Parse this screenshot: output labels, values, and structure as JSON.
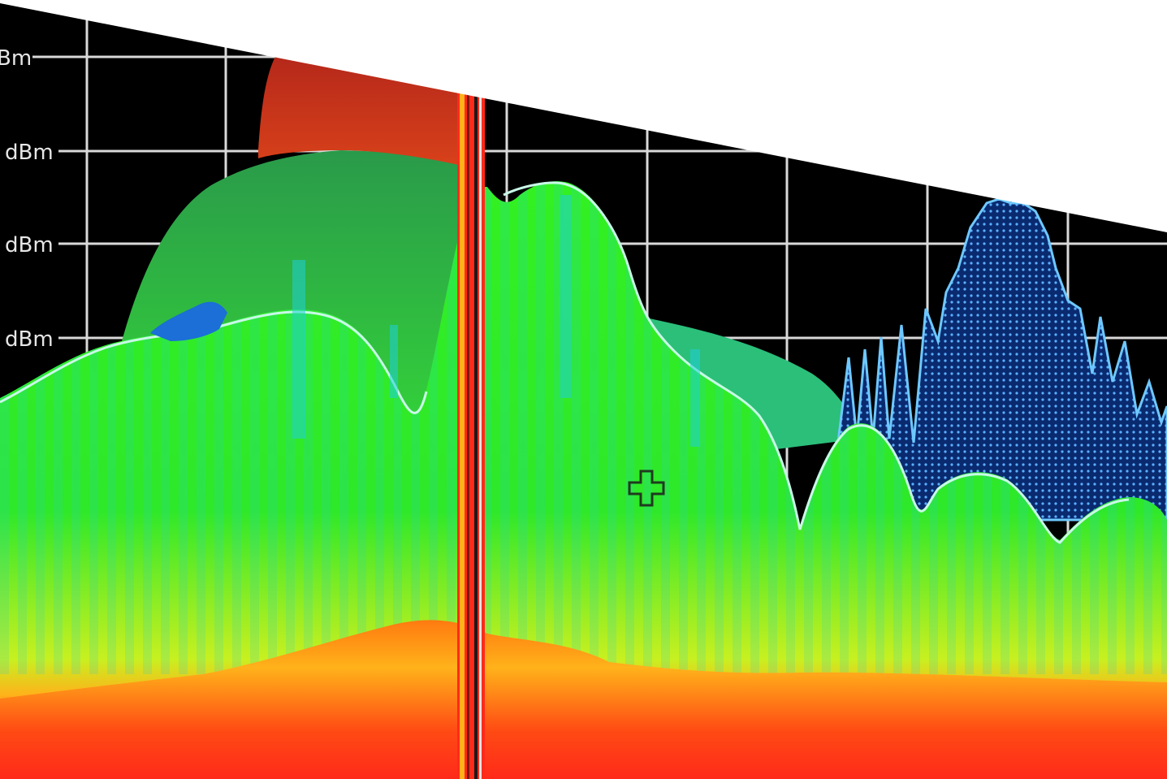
{
  "display": {
    "colors": {
      "background": "#000000",
      "grid": "#d9d9d9",
      "high_density": "#ff2a1a",
      "mid_density": "#33f022",
      "low_density": "#1fd0d8",
      "sparse": "#1b6fd6",
      "overlay_corner": "#ffffff"
    },
    "y_axis_labels": [
      "Bm",
      "dBm",
      "dBm",
      "dBm"
    ],
    "cursor_icon": "crosshair-cursor-icon"
  }
}
